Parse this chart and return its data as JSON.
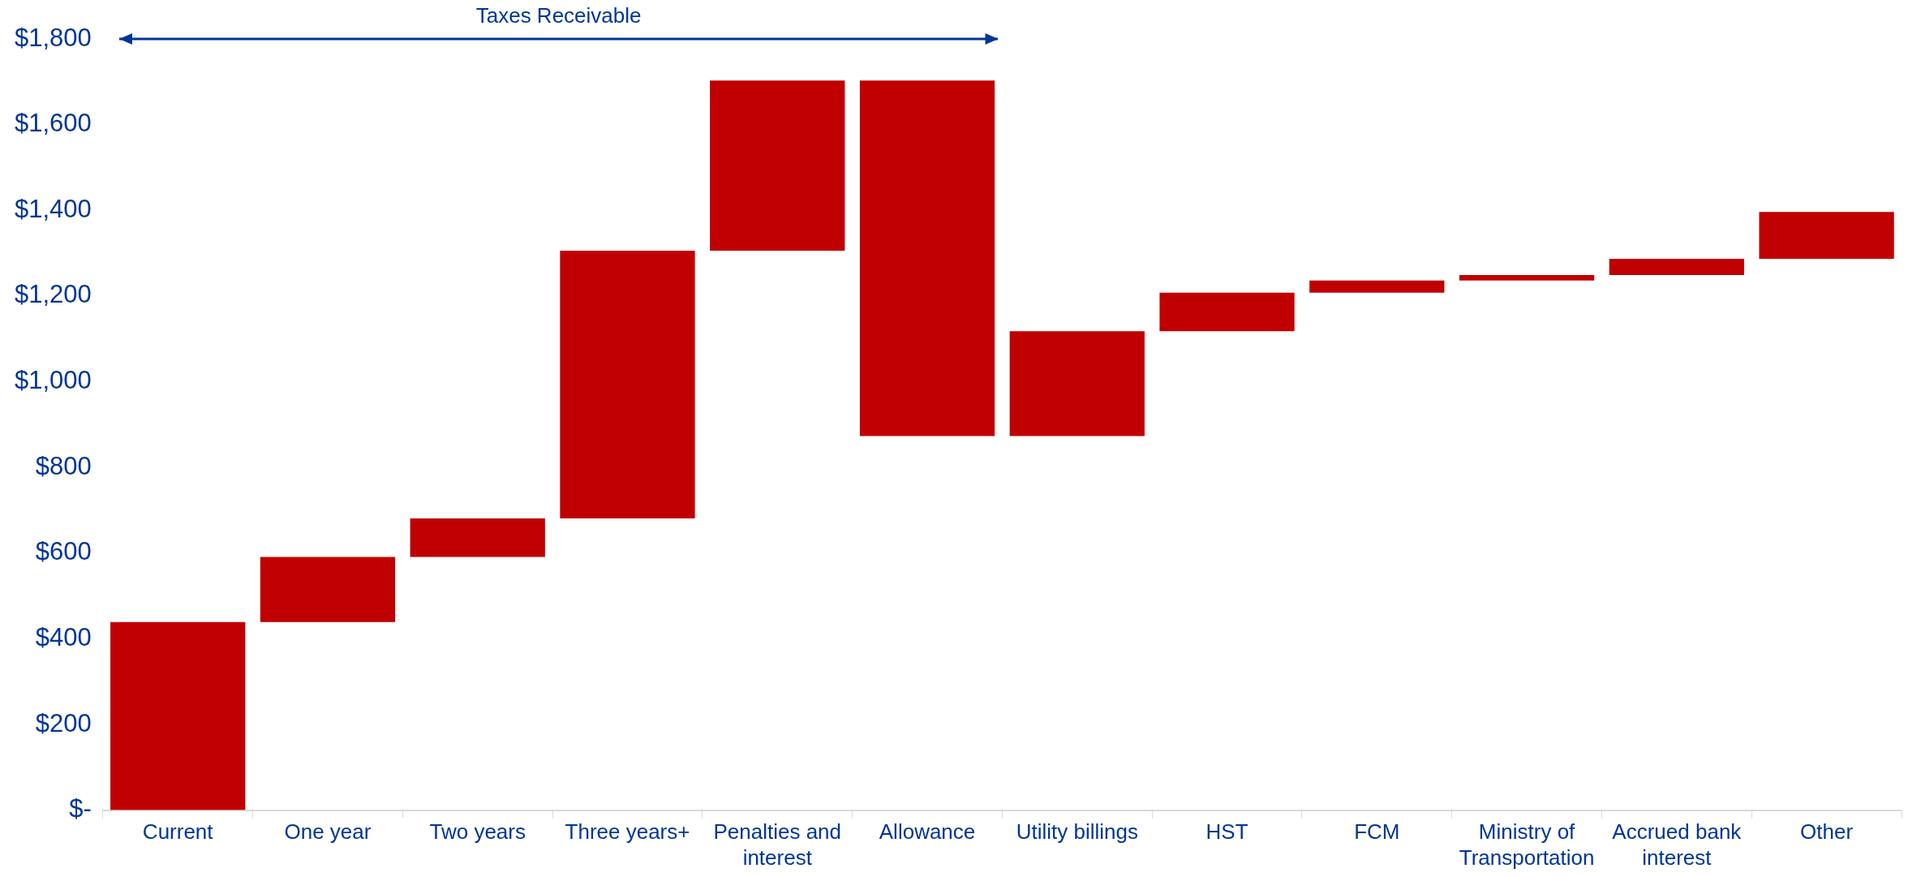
{
  "chart_data": {
    "type": "bar",
    "categories": [
      "Current",
      "One year",
      "Two years",
      "Three years+",
      "Penalties and interest",
      "Allowance",
      "Utility billings",
      "HST",
      "FCM",
      "Ministry of Transportation",
      "Accrued bank interest",
      "Other"
    ],
    "base": [
      0,
      439,
      591,
      681,
      1306,
      1703,
      873,
      1118,
      1208,
      1236,
      1249,
      1287
    ],
    "values": [
      439,
      152,
      90,
      625,
      397,
      -830,
      245,
      90,
      28,
      13,
      38,
      109
    ],
    "color": "#c00000",
    "ylim": [
      0,
      1800
    ],
    "yticks": [
      {
        "value": 0,
        "label": "$-"
      },
      {
        "value": 200,
        "label": "$200"
      },
      {
        "value": 400,
        "label": "$400"
      },
      {
        "value": 600,
        "label": "$600"
      },
      {
        "value": 800,
        "label": "$800"
      },
      {
        "value": 1000,
        "label": "$1,000"
      },
      {
        "value": 1200,
        "label": "$1,200"
      },
      {
        "value": 1400,
        "label": "$1,400"
      },
      {
        "value": 1600,
        "label": "$1,600"
      },
      {
        "value": 1800,
        "label": "$1,800"
      }
    ],
    "annotations": [
      "Taxes Receivable"
    ],
    "grid": false,
    "legend": false
  }
}
